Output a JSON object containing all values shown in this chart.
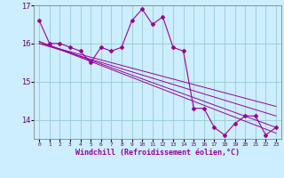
{
  "xlabel": "Windchill (Refroidissement éolien,°C)",
  "x_data": [
    0,
    1,
    2,
    3,
    4,
    5,
    6,
    7,
    8,
    9,
    10,
    11,
    12,
    13,
    14,
    15,
    16,
    17,
    18,
    19,
    20,
    21,
    22,
    23
  ],
  "y_main": [
    16.6,
    16.0,
    16.0,
    15.9,
    15.8,
    15.5,
    15.9,
    15.8,
    15.9,
    16.6,
    16.9,
    16.5,
    16.7,
    15.9,
    15.8,
    14.3,
    14.3,
    13.8,
    13.6,
    13.9,
    14.1,
    14.1,
    13.6,
    13.8
  ],
  "trend_lines": [
    {
      "x": [
        0,
        23
      ],
      "y": [
        16.0,
        14.35
      ]
    },
    {
      "x": [
        0,
        23
      ],
      "y": [
        16.0,
        14.1
      ]
    },
    {
      "x": [
        0,
        23
      ],
      "y": [
        16.05,
        13.8
      ]
    },
    {
      "x": [
        0,
        23
      ],
      "y": [
        16.05,
        13.65
      ]
    }
  ],
  "line_color": "#990099",
  "bg_color": "#cceeff",
  "grid_color": "#99cccc",
  "ylim": [
    13.5,
    17.0
  ],
  "yticks": [
    14,
    15,
    16,
    17
  ],
  "figsize": [
    3.2,
    2.0
  ],
  "dpi": 100
}
